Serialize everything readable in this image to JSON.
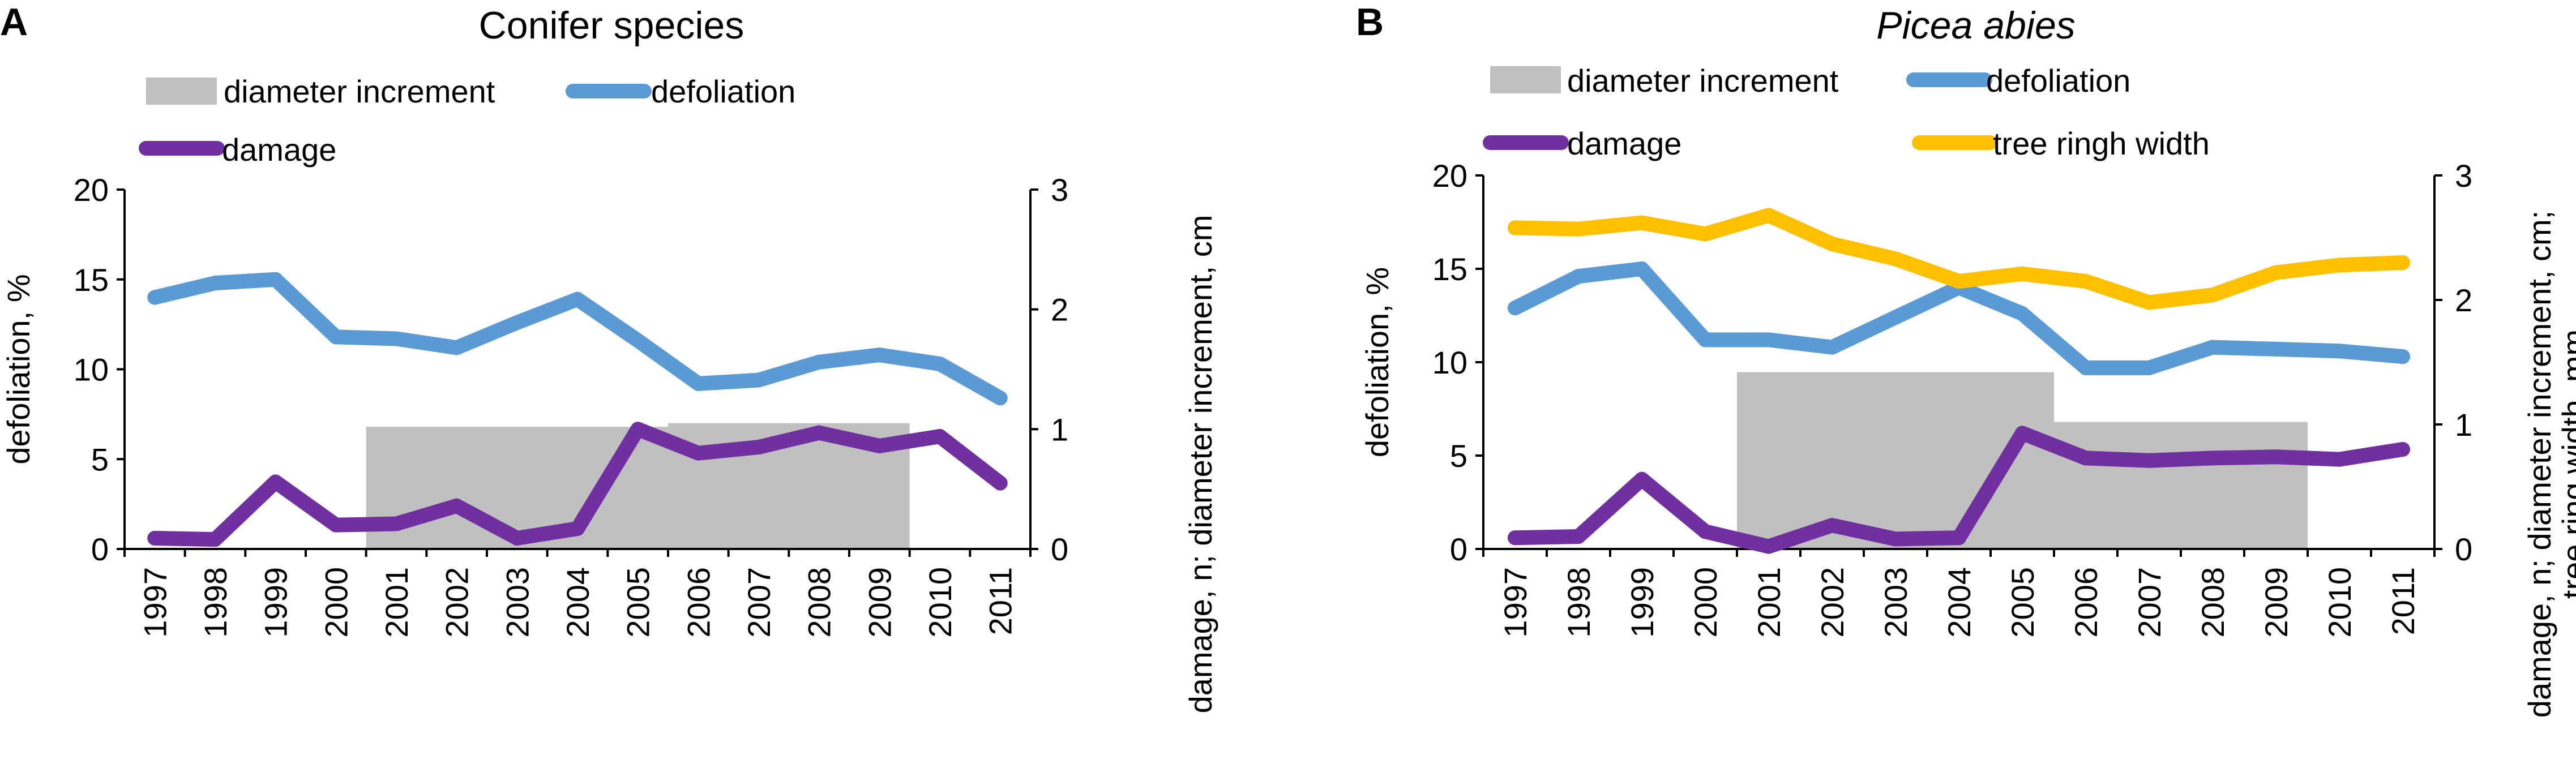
{
  "chart_data": [
    {
      "type": "line",
      "panel_label": "A",
      "title": "Conifer species",
      "title_italic": false,
      "categories": [
        "1997",
        "1998",
        "1999",
        "2000",
        "2001",
        "2002",
        "2003",
        "2004",
        "2005",
        "2006",
        "2007",
        "2008",
        "2009",
        "2010",
        "2011"
      ],
      "ylabel": "defoliation, %",
      "ylabel_right": [
        "damage, n; diameter increment, cm"
      ],
      "ylim": [
        0,
        20
      ],
      "yticks": [
        "0",
        "5",
        "10",
        "15",
        "20"
      ],
      "ylim_right": [
        0,
        3
      ],
      "yticks_right": [
        "0",
        "1",
        "2",
        "3"
      ],
      "legend": [
        "diameter increment",
        "defoliation",
        "damage"
      ],
      "colors": {
        "diameter_increment": "#c0c0c0",
        "defoliation": "#5b9bd5",
        "damage": "#7030a0",
        "tree_ring_width": "#ffc000"
      },
      "bars": [
        {
          "name": "diameter increment",
          "axis": "right",
          "start": "2001",
          "end": "2005",
          "value": 1.02
        },
        {
          "name": "diameter increment",
          "axis": "right",
          "start": "2006",
          "end": "2009",
          "value": 1.05
        }
      ],
      "series": [
        {
          "name": "defoliation",
          "axis": "left",
          "values": [
            14.0,
            14.8,
            15.0,
            11.8,
            11.7,
            11.2,
            12.6,
            13.9,
            11.6,
            9.2,
            9.4,
            10.4,
            10.8,
            10.3,
            8.4
          ]
        },
        {
          "name": "damage",
          "axis": "right",
          "values": [
            0.09,
            0.08,
            0.56,
            0.2,
            0.21,
            0.36,
            0.09,
            0.17,
            1.0,
            0.8,
            0.85,
            0.97,
            0.86,
            0.94,
            0.55
          ]
        }
      ]
    },
    {
      "type": "line",
      "panel_label": "B",
      "title": "Picea abies",
      "title_italic": true,
      "categories": [
        "1997",
        "1998",
        "1999",
        "2000",
        "2001",
        "2002",
        "2003",
        "2004",
        "2005",
        "2006",
        "2007",
        "2008",
        "2009",
        "2010",
        "2011"
      ],
      "ylabel": "defoliation, %",
      "ylabel_right": [
        "damage, n; diameter increment, cm;",
        "tree ring width, mm"
      ],
      "ylim": [
        0,
        20
      ],
      "yticks": [
        "0",
        "5",
        "10",
        "15",
        "20"
      ],
      "ylim_right": [
        0,
        3
      ],
      "yticks_right": [
        "0",
        "1",
        "2",
        "3"
      ],
      "legend": [
        "diameter increment",
        "defoliation",
        "damage",
        "tree ringh width"
      ],
      "colors": {
        "diameter_increment": "#c0c0c0",
        "defoliation": "#5b9bd5",
        "damage": "#7030a0",
        "tree_ring_width": "#ffc000"
      },
      "bars": [
        {
          "name": "diameter increment",
          "axis": "right",
          "start": "2001",
          "end": "2005",
          "value": 1.42
        },
        {
          "name": "diameter increment",
          "axis": "right",
          "start": "2006",
          "end": "2009",
          "value": 1.02
        }
      ],
      "series": [
        {
          "name": "defoliation",
          "axis": "left",
          "values": [
            12.9,
            14.6,
            15.0,
            11.2,
            11.2,
            10.8,
            12.4,
            14.0,
            12.6,
            9.7,
            9.7,
            10.8,
            10.7,
            10.6,
            10.3
          ]
        },
        {
          "name": "damage",
          "axis": "right",
          "values": [
            0.09,
            0.1,
            0.56,
            0.14,
            0.02,
            0.19,
            0.08,
            0.09,
            0.93,
            0.73,
            0.71,
            0.73,
            0.74,
            0.72,
            0.8
          ]
        },
        {
          "name": "tree ringh width",
          "axis": "right",
          "values": [
            2.58,
            2.57,
            2.62,
            2.53,
            2.68,
            2.45,
            2.33,
            2.15,
            2.21,
            2.15,
            1.98,
            2.04,
            2.22,
            2.28,
            2.3
          ]
        }
      ]
    }
  ]
}
